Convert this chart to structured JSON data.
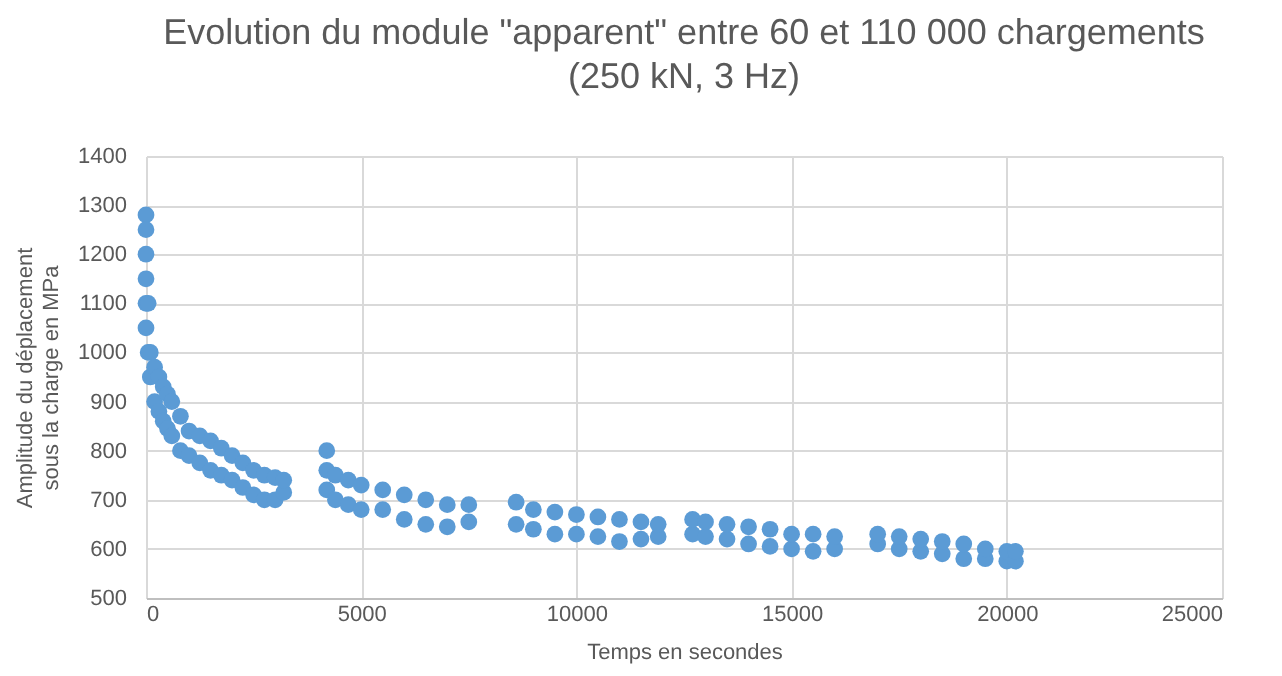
{
  "chart_data": {
    "type": "scatter",
    "title": "Evolution du module \"apparent\" entre 60 et 110 000 chargements",
    "subtitle": "(250 kN, 3 Hz)",
    "xlabel": "Temps en secondes",
    "ylabel": "Amplitude du déplacement  sous la charge en MPa",
    "xlim": [
      0,
      25000
    ],
    "xticks": [
      0,
      5000,
      10000,
      15000,
      20000,
      25000
    ],
    "ylim": [
      500,
      1400
    ],
    "yticks": [
      500,
      600,
      700,
      800,
      900,
      1000,
      1100,
      1200,
      1300,
      1400
    ],
    "grid": true,
    "marker": "circle",
    "series": [
      {
        "color": "#5b9bd5",
        "x": [
          0,
          0,
          0,
          0,
          0,
          0,
          50,
          50,
          100,
          100,
          200,
          200,
          300,
          300,
          400,
          400,
          500,
          500,
          600,
          600,
          800,
          800,
          1000,
          1000,
          1250,
          1250,
          1500,
          1500,
          1750,
          1750,
          2000,
          2000,
          2250,
          2250,
          2500,
          2500,
          2750,
          2750,
          3000,
          3000,
          3200,
          3200,
          4200,
          4200,
          4200,
          4400,
          4400,
          4700,
          4700,
          5000,
          5000,
          5500,
          5500,
          6000,
          6000,
          6500,
          6500,
          7000,
          7000,
          7500,
          7500,
          8600,
          8600,
          9000,
          9000,
          9500,
          9500,
          10000,
          10000,
          10500,
          10500,
          11000,
          11000,
          11500,
          11500,
          11900,
          11900,
          12700,
          12700,
          13000,
          13000,
          13500,
          13500,
          14000,
          14000,
          14500,
          14500,
          15000,
          15000,
          15500,
          15500,
          16000,
          16000,
          17000,
          17000,
          17500,
          17500,
          18000,
          18000,
          18500,
          18500,
          19000,
          19000,
          19500,
          19500,
          20000,
          20000,
          20200,
          20200
        ],
        "values": [
          1280,
          1250,
          1200,
          1150,
          1100,
          1050,
          1000,
          1100,
          950,
          1000,
          900,
          970,
          880,
          950,
          860,
          930,
          845,
          915,
          830,
          900,
          800,
          870,
          790,
          840,
          775,
          830,
          760,
          820,
          750,
          805,
          740,
          790,
          725,
          775,
          710,
          760,
          700,
          750,
          700,
          745,
          715,
          740,
          800,
          760,
          720,
          700,
          750,
          690,
          740,
          680,
          730,
          680,
          720,
          660,
          710,
          650,
          700,
          645,
          690,
          655,
          690,
          650,
          695,
          640,
          680,
          630,
          675,
          630,
          670,
          625,
          665,
          615,
          660,
          620,
          655,
          625,
          650,
          630,
          660,
          625,
          655,
          620,
          650,
          610,
          645,
          605,
          640,
          600,
          630,
          595,
          630,
          600,
          625,
          610,
          630,
          600,
          625,
          595,
          620,
          590,
          615,
          580,
          610,
          580,
          600,
          575,
          595,
          575,
          595
        ]
      }
    ]
  }
}
